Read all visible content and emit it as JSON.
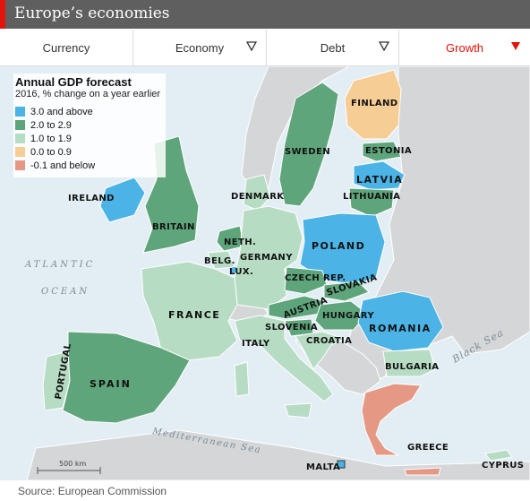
{
  "header": {
    "title": "Europe’s economies"
  },
  "tabs": [
    {
      "label": "Currency"
    },
    {
      "label": "Economy"
    },
    {
      "label": "Debt"
    },
    {
      "label": "Growth"
    }
  ],
  "legend": {
    "title": "Annual GDP forecast",
    "subtitle": "2016, % change on a year earlier",
    "items": [
      {
        "label": "3.0 and above",
        "color": "#4bb3e6"
      },
      {
        "label": "2.0 to 2.9",
        "color": "#5fa57b"
      },
      {
        "label": "1.0 to 1.9",
        "color": "#b7dcc4"
      },
      {
        "label": "0.0 to 0.9",
        "color": "#f6cd95"
      },
      {
        "label": "-0.1 and below",
        "color": "#e59884"
      }
    ]
  },
  "map": {
    "countries": {
      "finland": "FINLAND",
      "sweden": "SWEDEN",
      "estonia": "ESTONIA",
      "latvia": "LATVIA",
      "lithuania": "LITHUANIA",
      "denmark": "DENMARK",
      "ireland": "IRELAND",
      "britain": "BRITAIN",
      "netherlands": "NETH.",
      "belgium": "BELG.",
      "luxembourg": "LUX.",
      "germany": "GERMANY",
      "poland": "POLAND",
      "czech": "CZECH REP.",
      "slovakia": "SLOVAKIA",
      "austria": "AUSTRIA",
      "hungary": "HUNGARY",
      "slovenia": "SLOVENIA",
      "croatia": "CROATIA",
      "romania": "ROMANIA",
      "france": "FRANCE",
      "italy": "ITALY",
      "bulgaria": "BULGARIA",
      "portugal": "PORTUGAL",
      "spain": "SPAIN",
      "greece": "GREECE",
      "malta": "MALTA",
      "cyprus": "CYPRUS"
    },
    "seas": {
      "atlantic": "ATLANTIC",
      "ocean": "OCEAN",
      "black_sea": "Black Sea",
      "mediterranean": "Mediterranean Sea"
    },
    "scale": "500 km"
  },
  "footer": {
    "source": "Source: European Commission"
  }
}
